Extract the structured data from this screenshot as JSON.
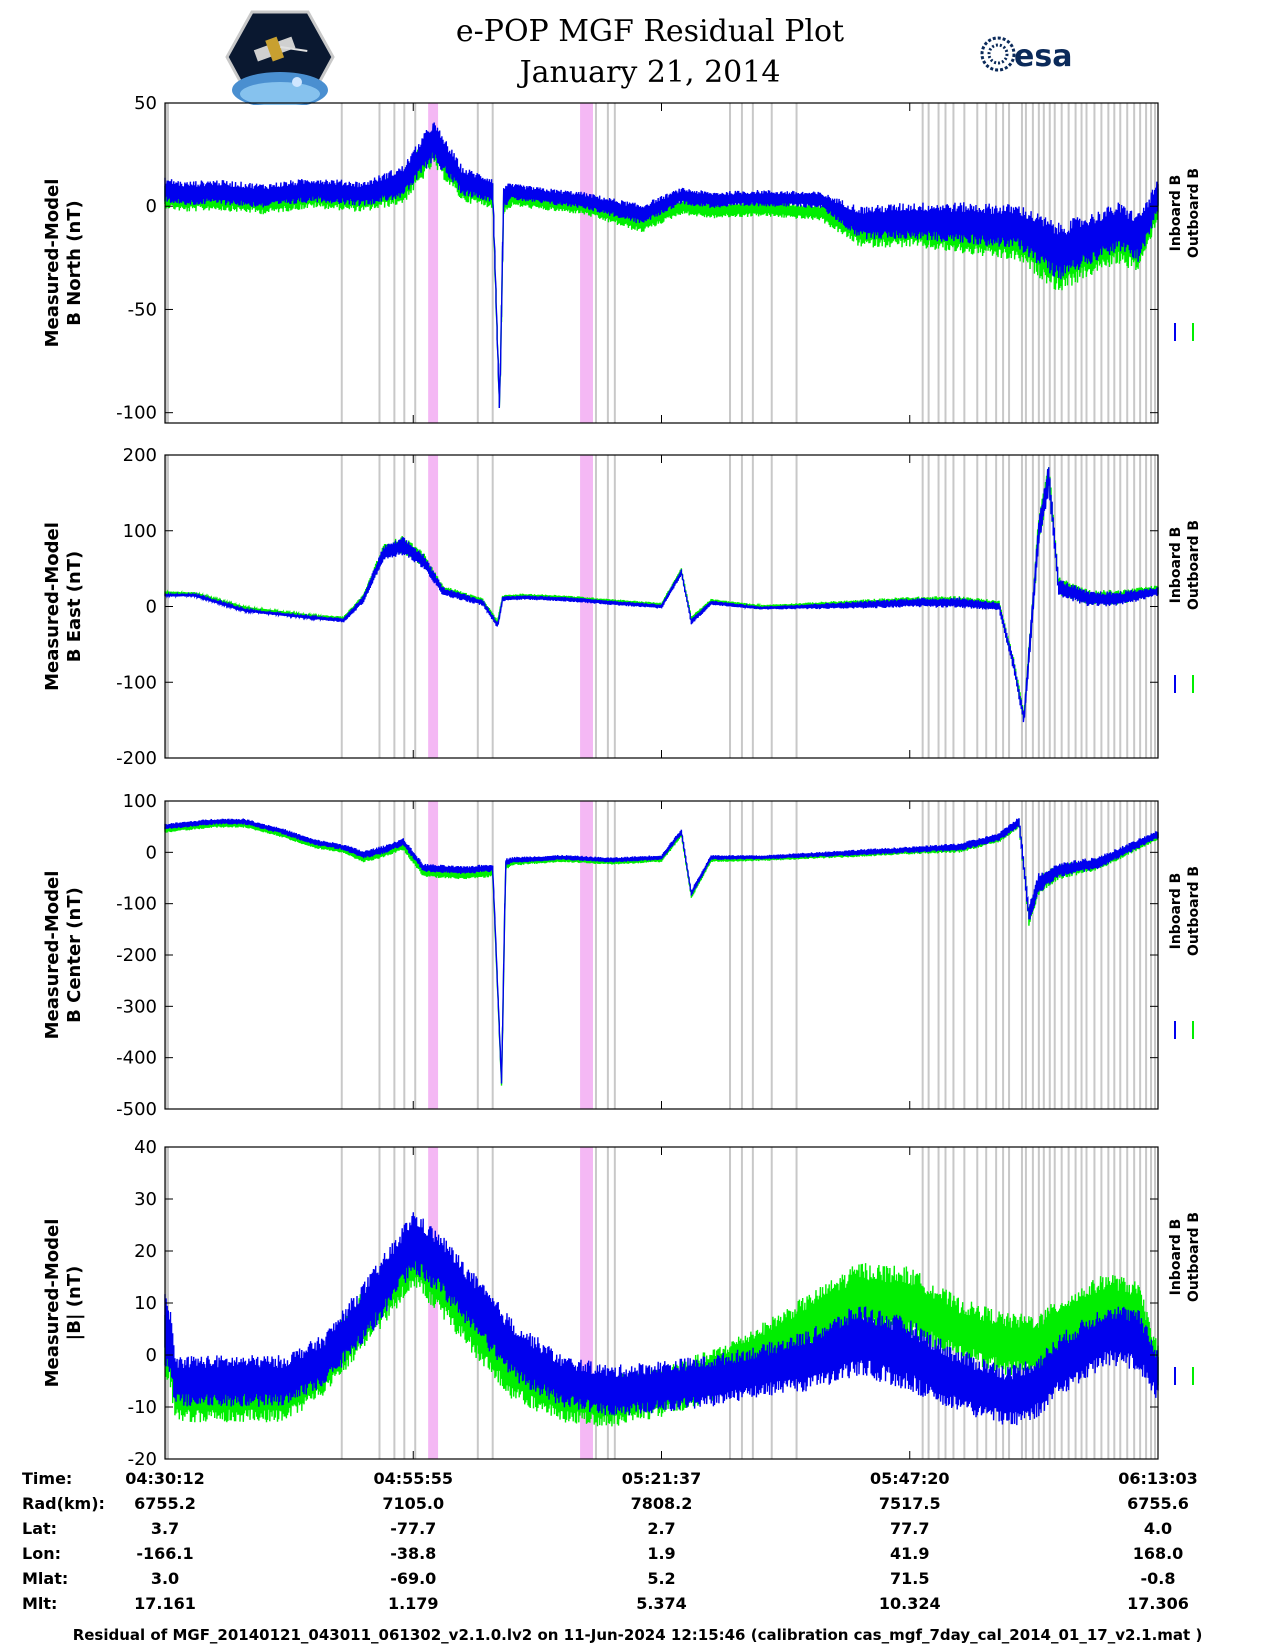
{
  "title_line1": "e-POP MGF Residual Plot",
  "title_line2": "January 21, 2014",
  "logos": {
    "left": "cassiope-mission-badge",
    "right": "esa"
  },
  "colors": {
    "inboard": "#0000ee",
    "outboard": "#00ee00",
    "gap_marker": "#c8c8c8",
    "maneuver_band": "#f0a0f0"
  },
  "chart_data": [
    {
      "type": "line",
      "ylabel_line1": "Measured-Model",
      "ylabel_line2": "B North (nT)",
      "ylim": [
        -105,
        50
      ],
      "yticks": [
        "50",
        "0",
        "-50",
        "-100"
      ],
      "ytick_values": [
        50,
        0,
        -50,
        -100
      ],
      "legend": [
        "Inboard B",
        "Outboard B"
      ],
      "series": [
        {
          "name": "Inboard B",
          "x": [
            0,
            2,
            5,
            10,
            15,
            20,
            24,
            27,
            30,
            33,
            33.7,
            34.1,
            35,
            38,
            42,
            48,
            52,
            55,
            60,
            66,
            70,
            75,
            80,
            86,
            90,
            94,
            96,
            98,
            99,
            100
          ],
          "mean": [
            8,
            6,
            7,
            5,
            8,
            6,
            12,
            32,
            12,
            8,
            -100,
            5,
            7,
            5,
            3,
            -4,
            5,
            3,
            4,
            3,
            -8,
            -7,
            -8,
            -10,
            -22,
            -14,
            -10,
            -15,
            -6,
            5
          ],
          "noise": [
            6,
            6,
            6,
            6,
            6,
            6,
            8,
            10,
            7,
            6,
            3,
            6,
            4,
            4,
            4,
            5,
            4,
            4,
            4,
            4,
            8,
            9,
            10,
            11,
            14,
            12,
            12,
            12,
            10,
            8
          ]
        },
        {
          "name": "Outboard B",
          "x": [
            0,
            2,
            5,
            10,
            15,
            20,
            24,
            27,
            30,
            33,
            33.7,
            34.1,
            35,
            38,
            42,
            48,
            52,
            55,
            60,
            66,
            70,
            75,
            80,
            86,
            90,
            94,
            96,
            98,
            99,
            100
          ],
          "mean": [
            5,
            3,
            4,
            2,
            5,
            3,
            9,
            29,
            9,
            5,
            -100,
            2,
            4,
            2,
            0,
            -8,
            0,
            -2,
            -1,
            -3,
            -12,
            -11,
            -13,
            -16,
            -28,
            -20,
            -16,
            -20,
            -10,
            2
          ],
          "noise": [
            6,
            6,
            6,
            6,
            6,
            6,
            8,
            10,
            7,
            6,
            3,
            6,
            4,
            4,
            4,
            5,
            4,
            4,
            4,
            4,
            8,
            9,
            10,
            11,
            14,
            12,
            12,
            12,
            10,
            8
          ]
        }
      ]
    },
    {
      "type": "line",
      "ylabel_line1": "Measured-Model",
      "ylabel_line2": "B East (nT)",
      "ylim": [
        -200,
        200
      ],
      "yticks": [
        "200",
        "100",
        "0",
        "-100",
        "-200"
      ],
      "ytick_values": [
        200,
        100,
        0,
        -100,
        -200
      ],
      "legend": [
        "Inboard B",
        "Outboard B"
      ],
      "series": [
        {
          "name": "Inboard B",
          "x": [
            0,
            3,
            8,
            15,
            18,
            20,
            22,
            24,
            26,
            28,
            32,
            33.5,
            34,
            36,
            40,
            45,
            50,
            52,
            53,
            55,
            60,
            70,
            75,
            80,
            84,
            85.5,
            86.5,
            88,
            89,
            90,
            93,
            96,
            100
          ],
          "mean": [
            15,
            15,
            -5,
            -15,
            -18,
            10,
            70,
            80,
            60,
            20,
            5,
            -25,
            10,
            12,
            10,
            5,
            0,
            45,
            -20,
            5,
            -2,
            2,
            5,
            5,
            0,
            -80,
            -150,
            100,
            170,
            25,
            10,
            10,
            20
          ],
          "noise": [
            2,
            2,
            2,
            2,
            3,
            5,
            10,
            12,
            10,
            6,
            4,
            4,
            3,
            3,
            3,
            3,
            3,
            4,
            4,
            3,
            2,
            5,
            6,
            7,
            6,
            8,
            8,
            20,
            20,
            12,
            10,
            10,
            6
          ]
        },
        {
          "name": "Outboard B",
          "x": [
            0,
            3,
            8,
            15,
            18,
            20,
            22,
            24,
            26,
            28,
            32,
            33.5,
            34,
            36,
            40,
            45,
            50,
            52,
            53,
            55,
            60,
            70,
            75,
            80,
            84,
            85.5,
            86.5,
            88,
            89,
            90,
            93,
            96,
            100
          ],
          "mean": [
            18,
            17,
            -2,
            -13,
            -16,
            12,
            72,
            82,
            62,
            22,
            7,
            -22,
            12,
            14,
            12,
            7,
            2,
            47,
            -17,
            7,
            0,
            4,
            7,
            7,
            2,
            -77,
            -147,
            102,
            172,
            27,
            12,
            12,
            22
          ],
          "noise": [
            2,
            2,
            2,
            2,
            3,
            5,
            10,
            12,
            10,
            6,
            4,
            4,
            3,
            3,
            3,
            3,
            3,
            4,
            4,
            3,
            2,
            5,
            6,
            7,
            6,
            8,
            8,
            20,
            20,
            12,
            10,
            10,
            6
          ]
        }
      ]
    },
    {
      "type": "line",
      "ylabel_line1": "Measured-Model",
      "ylabel_line2": "B Center (nT)",
      "ylim": [
        -500,
        100
      ],
      "yticks": [
        "100",
        "0",
        "-100",
        "-200",
        "-300",
        "-400",
        "-500"
      ],
      "ytick_values": [
        100,
        0,
        -100,
        -200,
        -300,
        -400,
        -500
      ],
      "legend": [
        "Inboard B",
        "Outboard B"
      ],
      "series": [
        {
          "name": "Inboard B",
          "x": [
            0,
            5,
            8,
            12,
            15,
            18,
            20,
            22,
            24,
            26,
            30,
            33,
            33.9,
            34.3,
            35,
            40,
            45,
            50,
            52,
            53,
            55,
            60,
            70,
            75,
            80,
            84,
            86,
            87,
            88,
            90,
            94,
            100
          ],
          "mean": [
            50,
            60,
            60,
            40,
            20,
            10,
            -5,
            5,
            20,
            -30,
            -35,
            -30,
            -450,
            -20,
            -15,
            -10,
            -15,
            -10,
            40,
            -80,
            -10,
            -10,
            0,
            5,
            10,
            30,
            60,
            -120,
            -60,
            -35,
            -20,
            35
          ],
          "noise": [
            6,
            6,
            6,
            6,
            6,
            6,
            8,
            8,
            8,
            8,
            8,
            8,
            6,
            8,
            6,
            5,
            5,
            5,
            6,
            6,
            5,
            4,
            6,
            6,
            8,
            8,
            10,
            20,
            20,
            15,
            12,
            8
          ]
        },
        {
          "name": "Outboard B",
          "x": [
            0,
            5,
            8,
            12,
            15,
            18,
            20,
            22,
            24,
            26,
            30,
            33,
            33.9,
            34.3,
            35,
            40,
            45,
            50,
            52,
            53,
            55,
            60,
            70,
            75,
            80,
            84,
            86,
            87,
            88,
            90,
            94,
            100
          ],
          "mean": [
            44,
            54,
            54,
            34,
            14,
            4,
            -12,
            -2,
            12,
            -40,
            -45,
            -40,
            -455,
            -27,
            -20,
            -14,
            -19,
            -14,
            36,
            -84,
            -14,
            -13,
            -3,
            2,
            7,
            27,
            57,
            -123,
            -63,
            -38,
            -23,
            32
          ],
          "noise": [
            6,
            6,
            6,
            6,
            6,
            6,
            8,
            8,
            8,
            8,
            8,
            8,
            6,
            8,
            6,
            5,
            5,
            5,
            6,
            6,
            5,
            4,
            6,
            6,
            8,
            8,
            10,
            20,
            20,
            15,
            12,
            8
          ]
        }
      ]
    },
    {
      "type": "line",
      "ylabel_line1": "Measured-Model",
      "ylabel_line2": "|B| (nT)",
      "ylim": [
        -20,
        40
      ],
      "yticks": [
        "40",
        "30",
        "20",
        "10",
        "0",
        "-10",
        "-20"
      ],
      "ytick_values": [
        40,
        30,
        20,
        10,
        0,
        -10,
        -20
      ],
      "legend": [
        "Inboard B",
        "Outboard B"
      ],
      "series": [
        {
          "name": "Inboard B",
          "x": [
            0,
            0.5,
            1,
            2,
            4,
            8,
            12,
            16,
            20,
            23,
            25,
            28,
            31,
            35,
            40,
            45,
            50,
            55,
            60,
            65,
            70,
            75,
            80,
            85,
            88,
            90,
            95,
            98,
            100
          ],
          "mean": [
            5,
            3,
            -5,
            -5,
            -5,
            -5,
            -5,
            -1,
            8,
            16,
            22,
            17,
            10,
            1,
            -5,
            -7,
            -6,
            -5,
            -3,
            -1,
            3,
            0,
            -5,
            -8,
            -6,
            -2,
            4,
            3,
            -4
          ],
          "noise": [
            7,
            7,
            5,
            5,
            5,
            5,
            5,
            5,
            6,
            6,
            6,
            6,
            6,
            6,
            5,
            5,
            5,
            5,
            5,
            6,
            7,
            7,
            6,
            6,
            6,
            6,
            6,
            6,
            5
          ]
        },
        {
          "name": "Outboard B",
          "x": [
            0,
            0.5,
            1,
            2,
            4,
            8,
            12,
            16,
            20,
            23,
            25,
            28,
            31,
            35,
            40,
            45,
            50,
            55,
            60,
            65,
            70,
            75,
            80,
            85,
            88,
            90,
            95,
            98,
            100
          ],
          "mean": [
            3,
            1,
            -7,
            -8,
            -8,
            -8,
            -8,
            -3,
            7,
            14,
            19,
            13,
            6,
            -3,
            -8,
            -9,
            -7,
            -4,
            1,
            6,
            11,
            10,
            5,
            2,
            2,
            5,
            10,
            8,
            -3
          ],
          "noise": [
            7,
            7,
            5,
            5,
            5,
            5,
            5,
            5,
            6,
            6,
            6,
            6,
            6,
            6,
            5,
            5,
            5,
            5,
            5,
            6,
            7,
            7,
            6,
            6,
            6,
            6,
            6,
            6,
            5
          ]
        }
      ]
    }
  ],
  "time_axis": {
    "range": [
      0,
      100
    ],
    "gap_markers": [
      0.1,
      0.2,
      0.3,
      17.8,
      21.6,
      23.1,
      24.1,
      25.2,
      31.5,
      33.0,
      43.4,
      44.6,
      45.3,
      56.9,
      58.1,
      59.2,
      61.1,
      63.6,
      76.3,
      76.9,
      77.9,
      78.6,
      79.4,
      80.5,
      81.8,
      82.7,
      83.7,
      84.4,
      85.0,
      86.3,
      86.7,
      87.4,
      88.0,
      88.5,
      89.1,
      89.6,
      90.3,
      91.0,
      91.7,
      92.3,
      92.8,
      93.6,
      94.3,
      95.0,
      95.6,
      96.2,
      96.9,
      97.6,
      98.2,
      98.8,
      99.3,
      99.7
    ],
    "maneuver_bands": [
      [
        26.5,
        27.5
      ],
      [
        41.8,
        43.1
      ]
    ],
    "tick_positions": [
      0,
      25,
      50,
      75,
      100
    ]
  },
  "ephemeris": {
    "labels": [
      "Time:",
      "Rad(km):",
      "Lat:",
      "Lon:",
      "Mlat:",
      "Mlt:"
    ],
    "columns": [
      [
        "04:30:12",
        "6755.2",
        "3.7",
        "-166.1",
        "3.0",
        "17.161"
      ],
      [
        "04:55:55",
        "7105.0",
        "-77.7",
        "-38.8",
        "-69.0",
        "1.179"
      ],
      [
        "05:21:37",
        "7808.2",
        "2.7",
        "1.9",
        "5.2",
        "5.374"
      ],
      [
        "05:47:20",
        "7517.5",
        "77.7",
        "41.9",
        "71.5",
        "10.324"
      ],
      [
        "06:13:03",
        "6755.6",
        "4.0",
        "168.0",
        "-0.8",
        "17.306"
      ]
    ]
  },
  "footer": "Residual of MGF_20140121_043011_061302_v2.1.0.lv2 on 11-Jun-2024 12:15:46 (calibration cas_mgf_7day_cal_2014_01_17_v2.1.mat )"
}
